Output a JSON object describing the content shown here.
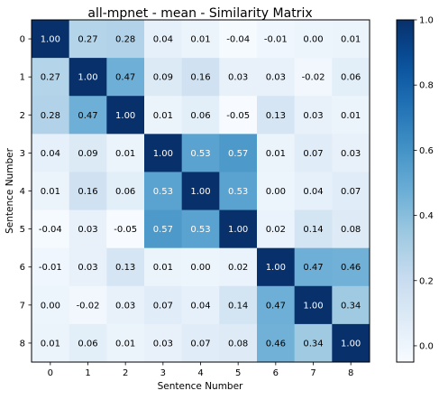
{
  "chart_data": {
    "type": "heatmap",
    "title": "all-mpnet - mean - Similarity Matrix",
    "xlabel": "Sentence Number",
    "ylabel": "Sentence Number",
    "x_ticks": [
      "0",
      "1",
      "2",
      "3",
      "4",
      "5",
      "6",
      "7",
      "8"
    ],
    "y_ticks": [
      "0",
      "1",
      "2",
      "3",
      "4",
      "5",
      "6",
      "7",
      "8"
    ],
    "colormap": "Blues",
    "colorbar": {
      "range": [
        -0.05,
        1.0
      ],
      "ticks": [
        {
          "value": 0.0,
          "label": "0.0"
        },
        {
          "value": 0.2,
          "label": "0.2"
        },
        {
          "value": 0.4,
          "label": "0.4"
        },
        {
          "value": 0.6,
          "label": "0.6"
        },
        {
          "value": 0.8,
          "label": "0.8"
        },
        {
          "value": 1.0,
          "label": "1.0"
        }
      ]
    },
    "matrix": [
      [
        1.0,
        0.27,
        0.28,
        0.04,
        0.01,
        -0.04,
        -0.01,
        0.0,
        0.01
      ],
      [
        0.27,
        1.0,
        0.47,
        0.09,
        0.16,
        0.03,
        0.03,
        -0.02,
        0.06
      ],
      [
        0.28,
        0.47,
        1.0,
        0.01,
        0.06,
        -0.05,
        0.13,
        0.03,
        0.01
      ],
      [
        0.04,
        0.09,
        0.01,
        1.0,
        0.53,
        0.57,
        0.01,
        0.07,
        0.03
      ],
      [
        0.01,
        0.16,
        0.06,
        0.53,
        1.0,
        0.53,
        0.0,
        0.04,
        0.07
      ],
      [
        -0.04,
        0.03,
        -0.05,
        0.57,
        0.53,
        1.0,
        0.02,
        0.14,
        0.08
      ],
      [
        -0.01,
        0.03,
        0.13,
        0.01,
        0.0,
        0.02,
        1.0,
        0.47,
        0.46
      ],
      [
        0.0,
        -0.02,
        0.03,
        0.07,
        0.04,
        0.14,
        0.47,
        1.0,
        0.34
      ],
      [
        0.01,
        0.06,
        0.01,
        0.03,
        0.07,
        0.08,
        0.46,
        0.34,
        1.0
      ]
    ],
    "value_format": "2 decimals"
  }
}
